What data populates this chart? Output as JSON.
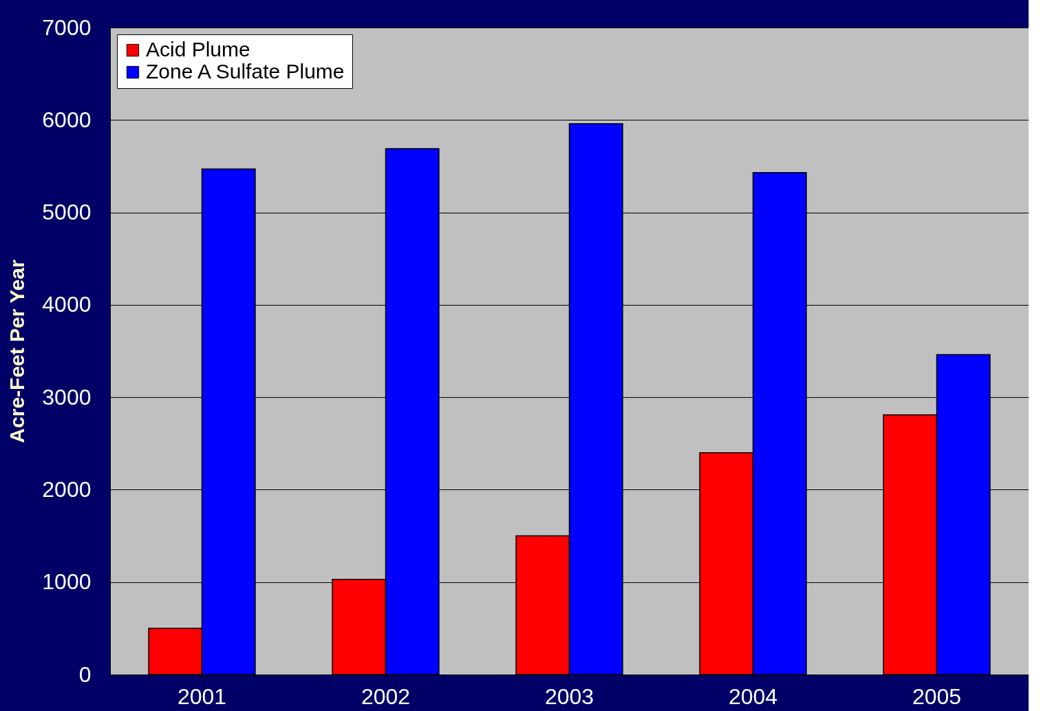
{
  "chart_data": {
    "type": "bar",
    "ylabel": "Acre-Feet Per Year",
    "categories": [
      "2001",
      "2002",
      "2003",
      "2004",
      "2005"
    ],
    "series": [
      {
        "name": "Acid Plume",
        "color": "#ff0000",
        "values": [
          500,
          1030,
          1500,
          2400,
          2810
        ]
      },
      {
        "name": "Zone A Sulfate Plume",
        "color": "#0000ff",
        "values": [
          5470,
          5690,
          5960,
          5430,
          3460
        ]
      }
    ],
    "ylim": [
      0,
      7000
    ],
    "yticks": [
      0,
      1000,
      2000,
      3000,
      4000,
      5000,
      6000,
      7000
    ],
    "grid": "y",
    "legend": "top left"
  }
}
